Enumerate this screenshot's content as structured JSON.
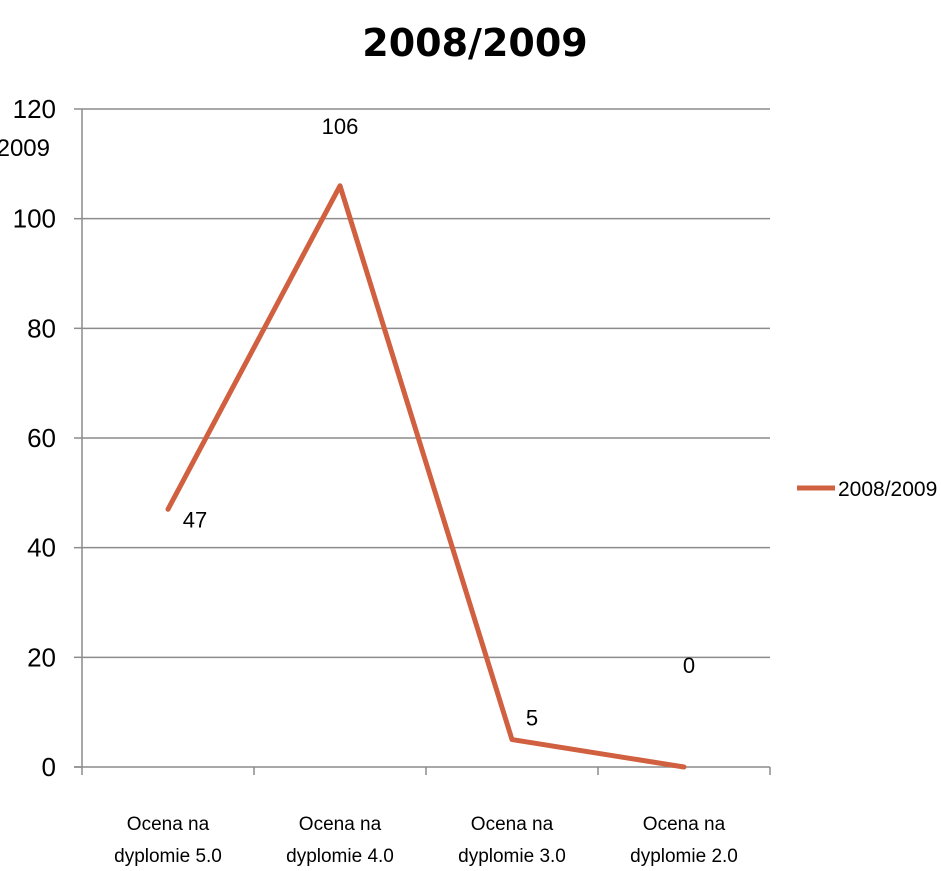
{
  "chart_data": {
    "type": "line",
    "title": "2008/2009",
    "y_axis_extra_label": "2009",
    "categories": [
      [
        "Ocena na",
        "dyplomie 5.0"
      ],
      [
        "Ocena na",
        "dyplomie 4.0"
      ],
      [
        "Ocena na",
        "dyplomie 3.0"
      ],
      [
        "Ocena na",
        "dyplomie 2.0"
      ]
    ],
    "series": [
      {
        "name": "2008/2009",
        "values": [
          47,
          106,
          5,
          0
        ],
        "color": "#d0603f"
      }
    ],
    "data_labels": [
      "47",
      "106",
      "5",
      "0"
    ],
    "ylim": [
      0,
      120
    ],
    "yticks": [
      0,
      20,
      40,
      60,
      80,
      100,
      120
    ],
    "grid": true,
    "legend_position": "right"
  }
}
